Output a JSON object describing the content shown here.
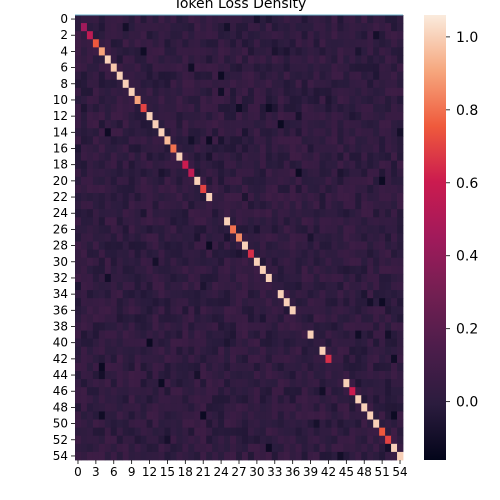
{
  "chart_data": {
    "type": "heatmap",
    "title": "Token Loss Density",
    "xlabel": "",
    "ylabel": "",
    "rows": 55,
    "cols": 55,
    "x_tick_labels": [
      "0",
      "3",
      "6",
      "9",
      "12",
      "15",
      "18",
      "21",
      "24",
      "27",
      "30",
      "33",
      "36",
      "39",
      "42",
      "45",
      "48",
      "51",
      "54"
    ],
    "x_tick_indices": [
      0,
      3,
      6,
      9,
      12,
      15,
      18,
      21,
      24,
      27,
      30,
      33,
      36,
      39,
      42,
      45,
      48,
      51,
      54
    ],
    "y_tick_labels": [
      "0",
      "2",
      "4",
      "6",
      "8",
      "10",
      "12",
      "14",
      "16",
      "18",
      "20",
      "22",
      "24",
      "26",
      "28",
      "30",
      "32",
      "34",
      "36",
      "38",
      "40",
      "42",
      "44",
      "46",
      "48",
      "50",
      "52",
      "54"
    ],
    "y_tick_indices": [
      0,
      2,
      4,
      6,
      8,
      10,
      12,
      14,
      16,
      18,
      20,
      22,
      24,
      26,
      28,
      30,
      32,
      34,
      36,
      38,
      40,
      42,
      44,
      46,
      48,
      50,
      52,
      54
    ],
    "value_range": [
      -0.16,
      1.06
    ],
    "colorbar_ticks": [
      1.0,
      0.8,
      0.6,
      0.4,
      0.2,
      0.0
    ],
    "colorbar_tick_labels": [
      "1.0",
      "0.8",
      "0.6",
      "0.4",
      "0.2",
      "0.0"
    ],
    "off_diagonal_typical": 0.02,
    "diagonal_values": [
      0.0,
      0.45,
      0.55,
      0.75,
      0.9,
      1.0,
      0.98,
      1.0,
      1.0,
      1.0,
      0.9,
      0.7,
      1.0,
      1.0,
      1.0,
      0.95,
      0.8,
      1.0,
      0.6,
      0.55,
      1.0,
      0.7,
      1.0,
      0.02,
      0.02,
      1.0,
      0.8,
      0.85,
      1.0,
      0.65,
      1.0,
      1.0,
      1.0,
      0.02,
      1.0,
      1.0,
      1.0,
      0.02,
      0.02,
      1.0,
      0.02,
      1.0,
      0.65,
      0.02,
      0.02,
      1.0,
      0.6,
      1.0,
      1.0,
      1.0,
      1.0,
      0.75,
      0.7,
      1.0,
      1.0
    ],
    "colormap": "rocket"
  }
}
